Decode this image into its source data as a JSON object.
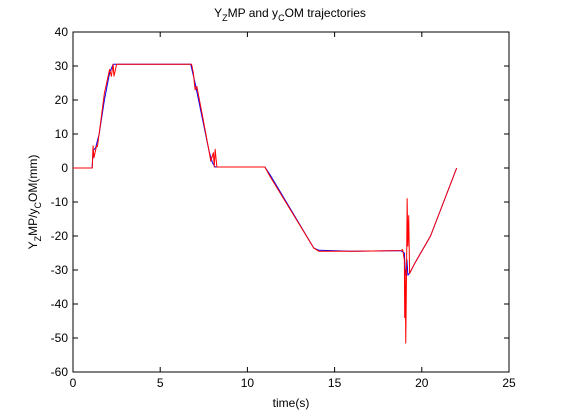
{
  "chart_data": {
    "type": "line",
    "title": {
      "t1": "Y",
      "s1": "Z",
      "t2": "MP and y",
      "s2": "C",
      "t3": "OM trajectories"
    },
    "xlabel": "time(s)",
    "ylabel": {
      "t1": "Y",
      "s1": "Z",
      "t2": "MP/y",
      "s2": "C",
      "t3": "OM(mm)"
    },
    "xlim": [
      0,
      25
    ],
    "ylim": [
      -60,
      40
    ],
    "xticks": [
      "0",
      "5",
      "10",
      "15",
      "20",
      "25"
    ],
    "yticks": [
      "40",
      "30",
      "20",
      "10",
      "0",
      "-10",
      "-20",
      "-30",
      "-40",
      "-50",
      "-60"
    ],
    "grid": false,
    "series": [
      {
        "color": "#0000ff",
        "x": [
          0,
          1.1,
          1.15,
          1.3,
          1.5,
          1.8,
          2.1,
          2.3,
          2.5,
          6.6,
          6.75,
          7.0,
          7.4,
          7.8,
          8.0,
          8.15,
          8.3,
          11.0,
          11.3,
          13.8,
          14.1,
          16.0,
          18.8,
          19.0,
          19.05,
          19.1,
          19.15,
          19.2,
          19.3,
          19.6,
          20.5,
          22.0
        ],
        "y": [
          0,
          0,
          5,
          6,
          10,
          20,
          28,
          30.5,
          30.5,
          30.5,
          30.5,
          25,
          15,
          5,
          1.5,
          0.3,
          0.3,
          0.3,
          -2,
          -23.5,
          -24.2,
          -24.5,
          -24.3,
          -25,
          -30,
          -31.5,
          -27,
          -31.5,
          -31,
          -28,
          -20,
          0
        ]
      },
      {
        "color": "#ff0000",
        "x": [
          0,
          1.1,
          1.15,
          1.2,
          1.35,
          1.4,
          1.55,
          1.8,
          2.1,
          2.2,
          2.3,
          2.35,
          2.5,
          6.6,
          6.8,
          6.9,
          7.0,
          7.1,
          7.4,
          7.8,
          7.9,
          8.05,
          8.1,
          8.15,
          8.25,
          8.3,
          11.0,
          11.3,
          13.8,
          14.1,
          16.0,
          18.8,
          18.9,
          19.0,
          19.02,
          19.05,
          19.08,
          19.12,
          19.16,
          19.2,
          19.25,
          19.3,
          19.6,
          20.5,
          22.0
        ],
        "y": [
          0,
          0,
          6.5,
          3,
          6.5,
          6.3,
          12,
          22,
          29,
          27,
          30.5,
          27,
          30.5,
          30.5,
          30.5,
          28,
          23,
          24,
          16,
          5,
          2,
          4.5,
          0.3,
          5.5,
          0.3,
          0.3,
          0.3,
          -2.5,
          -23.5,
          -24.5,
          -24.5,
          -24.3,
          -24,
          -27,
          -44,
          -30,
          -51.5,
          -33,
          -9,
          -23,
          -14,
          -31,
          -28,
          -20,
          0
        ]
      }
    ]
  }
}
